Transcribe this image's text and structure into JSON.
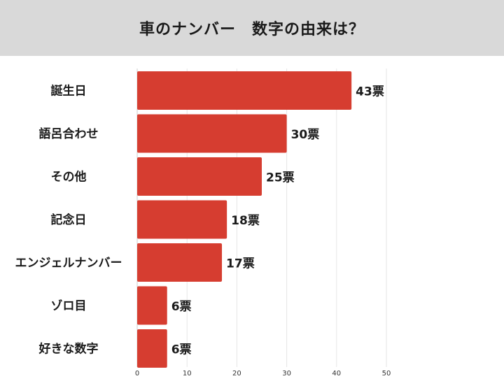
{
  "title": "車のナンバー　数字の由来は？",
  "chart_data": {
    "type": "bar",
    "orientation": "horizontal",
    "categories": [
      "誕生日",
      "語呂合わせ",
      "その他",
      "記念日",
      "エンジェルナンバー",
      "ゾロ目",
      "好きな数字"
    ],
    "values": [
      43,
      30,
      25,
      18,
      17,
      6,
      6
    ],
    "value_labels": [
      "43票",
      "30票",
      "25票",
      "18票",
      "17票",
      "6票",
      "6票"
    ],
    "xlim": [
      0,
      50
    ],
    "xticks": [
      0,
      10,
      20,
      30,
      40,
      50
    ],
    "grid": true,
    "bar_color": "#d63d30",
    "grid_color": "#e6e6e6",
    "text_color": "#1a1a1a"
  }
}
